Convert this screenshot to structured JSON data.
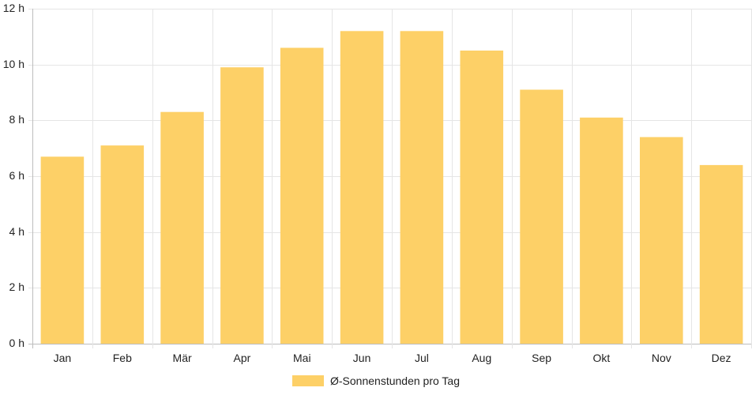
{
  "chart_data": {
    "type": "bar",
    "categories": [
      "Jan",
      "Feb",
      "Mär",
      "Apr",
      "Mai",
      "Jun",
      "Jul",
      "Aug",
      "Sep",
      "Okt",
      "Nov",
      "Dez"
    ],
    "series": [
      {
        "name": "Ø-Sonnenstunden pro Tag",
        "values": [
          6.7,
          7.1,
          8.3,
          9.9,
          10.6,
          11.2,
          11.2,
          10.5,
          9.1,
          8.1,
          7.4,
          6.4
        ],
        "color": "#fdd067"
      }
    ],
    "yticks": [
      "0 h",
      "2 h",
      "4 h",
      "6 h",
      "8 h",
      "10 h",
      "12 h"
    ],
    "ylim": [
      0,
      12
    ],
    "grid": true,
    "legend_position": "bottom"
  }
}
